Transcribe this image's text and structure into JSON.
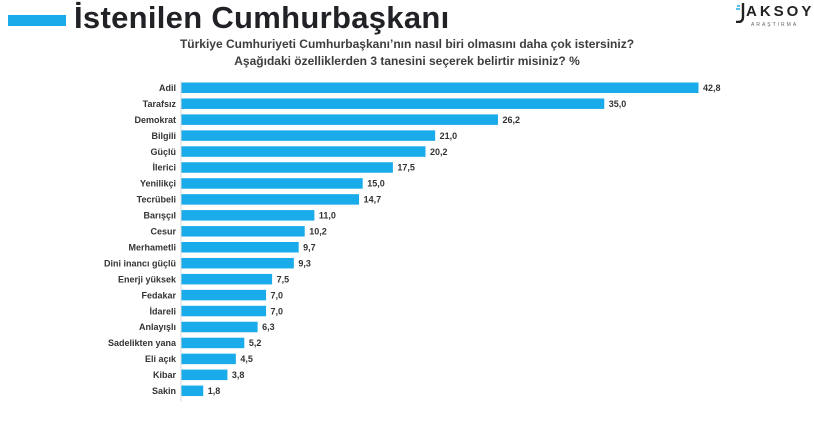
{
  "header": {
    "title": "İstenilen Cumhurbaşkanı",
    "logo_main": "AKSOY",
    "logo_sub": "ARAŞTIRMA"
  },
  "colors": {
    "bar": "#1aabea",
    "accent": "#1aabea",
    "text": "#202226"
  },
  "chart_data": {
    "type": "bar",
    "orientation": "horizontal",
    "title": "Türkiye Cumhuriyeti Cumhurbaşkanı’nın nasıl biri olmasını daha çok istersiniz?",
    "subtitle": "Aşağıdaki özelliklerden 3 tanesini seçerek belirtir misiniz? %",
    "categories": [
      "Adil",
      "Tarafsız",
      "Demokrat",
      "Bilgili",
      "Güçlü",
      "İlerici",
      "Yenilikçi",
      "Tecrübeli",
      "Barışçıl",
      "Cesur",
      "Merhametli",
      "Dini inancı güçlü",
      "Enerji yüksek",
      "Fedakar",
      "İdareli",
      "Anlayışlı",
      "Sadelikten yana",
      "Eli açık",
      "Kibar",
      "Sakin"
    ],
    "values": [
      42.8,
      35.0,
      26.2,
      21.0,
      20.2,
      17.5,
      15.0,
      14.7,
      11.0,
      10.2,
      9.7,
      9.3,
      7.5,
      7.0,
      7.0,
      6.3,
      5.2,
      4.5,
      3.8,
      1.8
    ],
    "value_labels": [
      "42,8",
      "35,0",
      "26,2",
      "21,0",
      "20,2",
      "17,5",
      "15,0",
      "14,7",
      "11,0",
      "10,2",
      "9,7",
      "9,3",
      "7,5",
      "7,0",
      "7,0",
      "6,3",
      "5,2",
      "4,5",
      "3,8",
      "1,8"
    ],
    "xlim": [
      0,
      42.8
    ]
  }
}
